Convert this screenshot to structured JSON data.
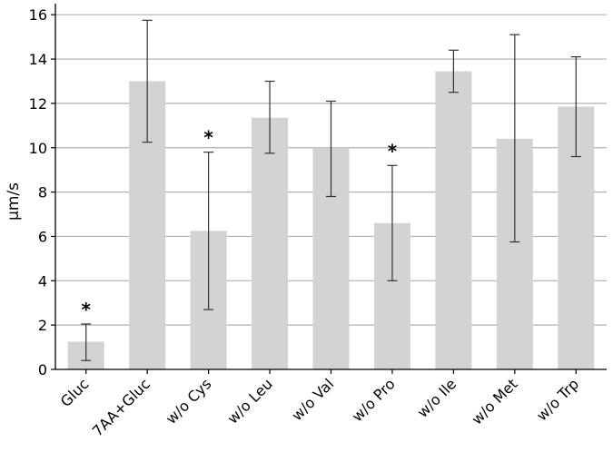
{
  "chart_data": {
    "type": "bar",
    "categories": [
      "Gluc",
      "7AA+Gluc",
      "w/o Cys",
      "w/o Leu",
      "w/o Val",
      "w/o Pro",
      "w/o Ile",
      "w/o Met",
      "w/o Trp"
    ],
    "values": [
      1.25,
      13.0,
      6.25,
      11.35,
      10.0,
      6.6,
      13.45,
      10.4,
      11.85
    ],
    "error_low": [
      0.4,
      10.25,
      2.7,
      9.75,
      7.8,
      4.0,
      12.5,
      5.75,
      9.6
    ],
    "error_high": [
      2.05,
      15.75,
      9.8,
      13.0,
      12.1,
      9.2,
      14.4,
      15.1,
      14.1
    ],
    "significance": [
      "*",
      "",
      "*",
      "",
      "",
      "*",
      "",
      "",
      ""
    ],
    "xlabel": "",
    "ylabel": "µm/s",
    "ylim": [
      0,
      16.5
    ],
    "yticks": [
      0,
      2,
      4,
      6,
      8,
      10,
      12,
      14,
      16
    ],
    "grid": "horizontal",
    "bar_color": "#d3d3d3",
    "grid_color": "#b0b0b0",
    "error_color": "#333333"
  }
}
